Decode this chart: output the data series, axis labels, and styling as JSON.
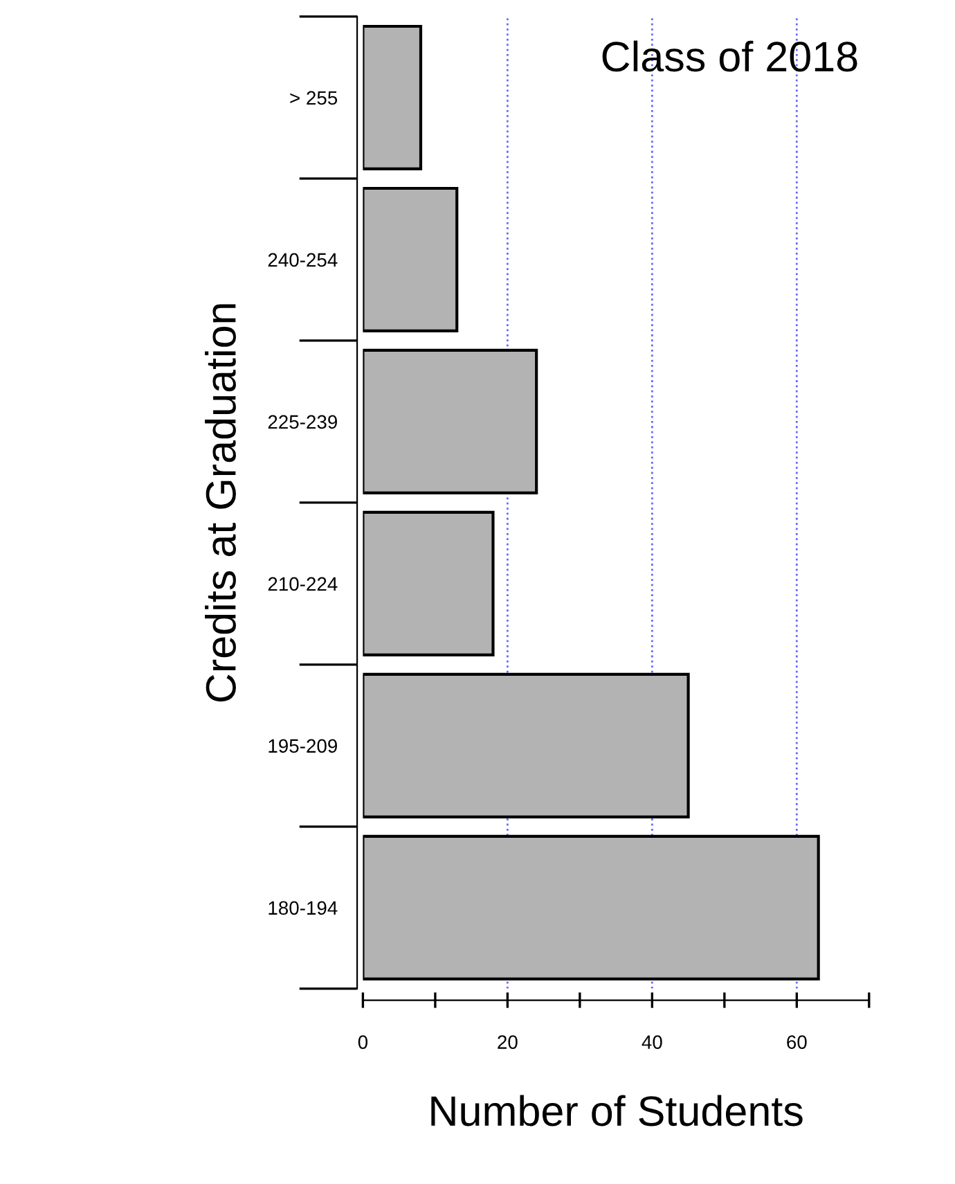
{
  "chart_data": {
    "type": "bar",
    "orientation": "horizontal",
    "categories": [
      "> 255",
      "240-254",
      "225-239",
      "210-224",
      "195-209",
      "180-194"
    ],
    "values": [
      8,
      13,
      24,
      18,
      45,
      63
    ],
    "color": "#b3b3b3",
    "xlabel": "Number of Students",
    "ylabel": "Credits at Graduation",
    "annotations": [
      "Class of 2018"
    ],
    "xlim": [
      0,
      70
    ],
    "xticks": [
      0,
      {
        "value": 10,
        "label": null
      },
      20,
      {
        "value": 30,
        "label": null
      },
      40,
      {
        "value": 50,
        "label": null
      },
      60,
      {
        "value": 70,
        "label": null
      }
    ],
    "grid": "x",
    "legend": false
  }
}
